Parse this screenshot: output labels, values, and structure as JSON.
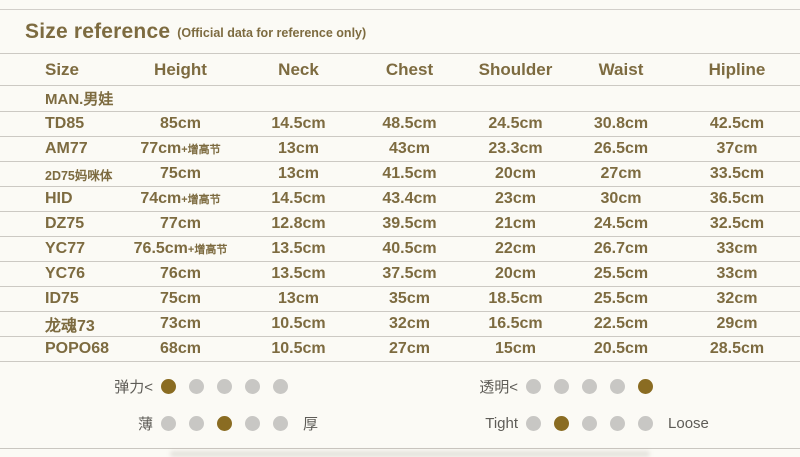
{
  "title": {
    "main": "Size reference",
    "sub": "(Official data for reference only)"
  },
  "table": {
    "headers": [
      "Size",
      "Height",
      "Neck",
      "Chest",
      "Shoulder",
      "Waist",
      "Hipline"
    ],
    "section": "MAN.男娃",
    "rows": [
      {
        "size": "TD85",
        "height": "85cm",
        "height_suffix": "",
        "neck": "14.5cm",
        "chest": "48.5cm",
        "shoulder": "24.5cm",
        "waist": "30.8cm",
        "hipline": "42.5cm"
      },
      {
        "size": "AM77",
        "height": "77cm",
        "height_suffix": "+增高节",
        "neck": "13cm",
        "chest": "43cm",
        "shoulder": "23.3cm",
        "waist": "26.5cm",
        "hipline": "37cm"
      },
      {
        "size": "2D75妈咪体",
        "height": "75cm",
        "height_suffix": "",
        "neck": "13cm",
        "chest": "41.5cm",
        "shoulder": "20cm",
        "waist": "27cm",
        "hipline": "33.5cm"
      },
      {
        "size": "HID",
        "height": "74cm",
        "height_suffix": "+增高节",
        "neck": "14.5cm",
        "chest": "43.4cm",
        "shoulder": "23cm",
        "waist": "30cm",
        "hipline": "36.5cm"
      },
      {
        "size": "DZ75",
        "height": "77cm",
        "height_suffix": "",
        "neck": "12.8cm",
        "chest": "39.5cm",
        "shoulder": "21cm",
        "waist": "24.5cm",
        "hipline": "32.5cm"
      },
      {
        "size": "YC77",
        "height": "76.5cm",
        "height_suffix": "+增高节",
        "neck": "13.5cm",
        "chest": "40.5cm",
        "shoulder": "22cm",
        "waist": "26.7cm",
        "hipline": "33cm"
      },
      {
        "size": "YC76",
        "height": "76cm",
        "height_suffix": "",
        "neck": "13.5cm",
        "chest": "37.5cm",
        "shoulder": "20cm",
        "waist": "25.5cm",
        "hipline": "33cm"
      },
      {
        "size": "ID75",
        "height": "75cm",
        "height_suffix": "",
        "neck": "13cm",
        "chest": "35cm",
        "shoulder": "18.5cm",
        "waist": "25.5cm",
        "hipline": "32cm"
      },
      {
        "size": "龙魂73",
        "height": "73cm",
        "height_suffix": "",
        "neck": "10.5cm",
        "chest": "32cm",
        "shoulder": "16.5cm",
        "waist": "22.5cm",
        "hipline": "29cm"
      },
      {
        "size": "POPO68",
        "height": "68cm",
        "height_suffix": "",
        "neck": "10.5cm",
        "chest": "27cm",
        "shoulder": "15cm",
        "waist": "20.5cm",
        "hipline": "28.5cm"
      }
    ]
  },
  "legend": {
    "elasticity": {
      "label": "弹力<",
      "dots": 5,
      "filled_index": 0
    },
    "thickness": {
      "label_left": "薄",
      "label_right": "厚",
      "dots": 5,
      "filled_index": 2
    },
    "transparency": {
      "label": "透明<",
      "dots": 5,
      "filled_index": 4
    },
    "fit": {
      "label_left": "Tight",
      "label_right": "Loose",
      "dots": 5,
      "filled_index": 1
    }
  },
  "colors": {
    "accent": "#7d6b40",
    "filled_dot": "#8a6c22",
    "empty_dot": "#c8c7c4",
    "line": "#ccc9c3",
    "label_gray": "#5e5c57",
    "background": "#fbfaf5"
  }
}
